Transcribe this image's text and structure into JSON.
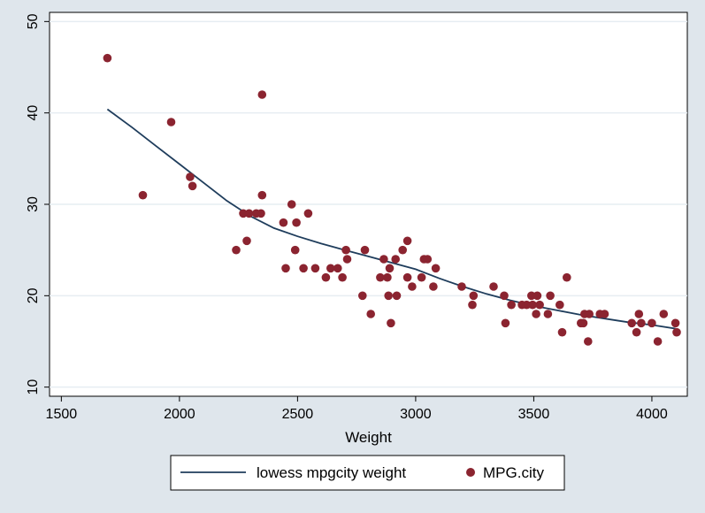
{
  "chart_data": {
    "type": "scatter",
    "title": "",
    "xlabel": "Weight",
    "ylabel": "",
    "xlim": [
      1450,
      4150
    ],
    "ylim": [
      9,
      51
    ],
    "x_ticks": [
      1500,
      2000,
      2500,
      3000,
      3500,
      4000
    ],
    "y_ticks": [
      10,
      20,
      30,
      40,
      50
    ],
    "grid": "horizontal",
    "legend_position": "bottom",
    "colors": {
      "scatter": "#8b2430",
      "line": "#1f3d5c",
      "plot_bg": "#ffffff",
      "outer_bg": "#dfe6ec"
    },
    "series": [
      {
        "name": "MPG.city",
        "type": "scatter",
        "points": [
          [
            1695,
            46
          ],
          [
            1845,
            31
          ],
          [
            1965,
            39
          ],
          [
            2045,
            33
          ],
          [
            2055,
            32
          ],
          [
            2240,
            25
          ],
          [
            2270,
            29
          ],
          [
            2285,
            26
          ],
          [
            2295,
            29
          ],
          [
            2325,
            29
          ],
          [
            2345,
            29
          ],
          [
            2350,
            31
          ],
          [
            2350,
            42
          ],
          [
            2440,
            28
          ],
          [
            2450,
            23
          ],
          [
            2475,
            30
          ],
          [
            2490,
            25
          ],
          [
            2495,
            28
          ],
          [
            2525,
            23
          ],
          [
            2545,
            29
          ],
          [
            2575,
            23
          ],
          [
            2620,
            22
          ],
          [
            2640,
            23
          ],
          [
            2670,
            23
          ],
          [
            2690,
            22
          ],
          [
            2705,
            25
          ],
          [
            2710,
            24
          ],
          [
            2775,
            20
          ],
          [
            2785,
            25
          ],
          [
            2810,
            18
          ],
          [
            2850,
            22
          ],
          [
            2865,
            24
          ],
          [
            2880,
            22
          ],
          [
            2885,
            20
          ],
          [
            2890,
            23
          ],
          [
            2895,
            17
          ],
          [
            2915,
            24
          ],
          [
            2920,
            20
          ],
          [
            2945,
            25
          ],
          [
            2965,
            26
          ],
          [
            2965,
            22
          ],
          [
            2985,
            21
          ],
          [
            3025,
            22
          ],
          [
            3035,
            24
          ],
          [
            3050,
            24
          ],
          [
            3075,
            21
          ],
          [
            3085,
            23
          ],
          [
            3195,
            21
          ],
          [
            3240,
            19
          ],
          [
            3245,
            20
          ],
          [
            3330,
            21
          ],
          [
            3375,
            20
          ],
          [
            3380,
            17
          ],
          [
            3405,
            19
          ],
          [
            3450,
            19
          ],
          [
            3470,
            19
          ],
          [
            3490,
            20
          ],
          [
            3495,
            19
          ],
          [
            3510,
            18
          ],
          [
            3515,
            20
          ],
          [
            3525,
            19
          ],
          [
            3560,
            18
          ],
          [
            3570,
            20
          ],
          [
            3610,
            19
          ],
          [
            3620,
            16
          ],
          [
            3640,
            22
          ],
          [
            3700,
            17
          ],
          [
            3710,
            17
          ],
          [
            3715,
            18
          ],
          [
            3730,
            15
          ],
          [
            3735,
            18
          ],
          [
            3780,
            18
          ],
          [
            3800,
            18
          ],
          [
            3915,
            17
          ],
          [
            3935,
            16
          ],
          [
            3945,
            18
          ],
          [
            3955,
            17
          ],
          [
            4000,
            17
          ],
          [
            4025,
            15
          ],
          [
            4050,
            18
          ],
          [
            4100,
            17
          ],
          [
            4105,
            16
          ]
        ]
      },
      {
        "name": "lowess mpgcity weight",
        "type": "line",
        "points": [
          [
            1695,
            40.4
          ],
          [
            1800,
            38.4
          ],
          [
            1900,
            36.4
          ],
          [
            2000,
            34.4
          ],
          [
            2100,
            32.4
          ],
          [
            2200,
            30.4
          ],
          [
            2300,
            28.7
          ],
          [
            2400,
            27.4
          ],
          [
            2500,
            26.5
          ],
          [
            2600,
            25.7
          ],
          [
            2700,
            25.0
          ],
          [
            2800,
            24.3
          ],
          [
            2900,
            23.6
          ],
          [
            3000,
            22.9
          ],
          [
            3100,
            21.9
          ],
          [
            3200,
            21.0
          ],
          [
            3300,
            20.2
          ],
          [
            3400,
            19.5
          ],
          [
            3500,
            18.9
          ],
          [
            3600,
            18.4
          ],
          [
            3700,
            17.9
          ],
          [
            3800,
            17.5
          ],
          [
            3900,
            17.1
          ],
          [
            4000,
            16.8
          ],
          [
            4100,
            16.4
          ]
        ]
      }
    ],
    "legend": [
      {
        "label": "lowess mpgcity weight",
        "kind": "line"
      },
      {
        "label": "MPG.city",
        "kind": "marker"
      }
    ]
  }
}
